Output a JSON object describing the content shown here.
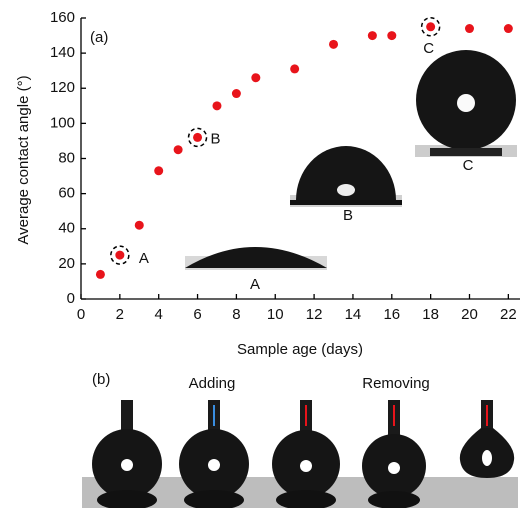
{
  "chart_data": {
    "type": "scatter",
    "panel_label": "(a)",
    "xlabel": "Sample age (days)",
    "ylabel": "Average contact angle (°)",
    "x": [
      1,
      2,
      3,
      4,
      5,
      6,
      7,
      8,
      9,
      11,
      13,
      15,
      16,
      18,
      20,
      22
    ],
    "values": [
      14,
      25,
      42,
      73,
      85,
      92,
      110,
      117,
      126,
      131,
      145,
      150,
      150,
      155,
      154,
      154
    ],
    "color": "#e8141b",
    "xlim": [
      0,
      22.6
    ],
    "ylim": [
      0,
      160
    ],
    "xticks": [
      0,
      2,
      4,
      6,
      8,
      10,
      12,
      14,
      16,
      18,
      20,
      22
    ],
    "yticks": [
      0,
      20,
      40,
      60,
      80,
      100,
      120,
      140,
      160
    ],
    "annotations": [
      "A",
      "B",
      "C"
    ]
  },
  "panel_b": {
    "label": "(b)",
    "captions": [
      "Adding",
      "Removing"
    ]
  }
}
